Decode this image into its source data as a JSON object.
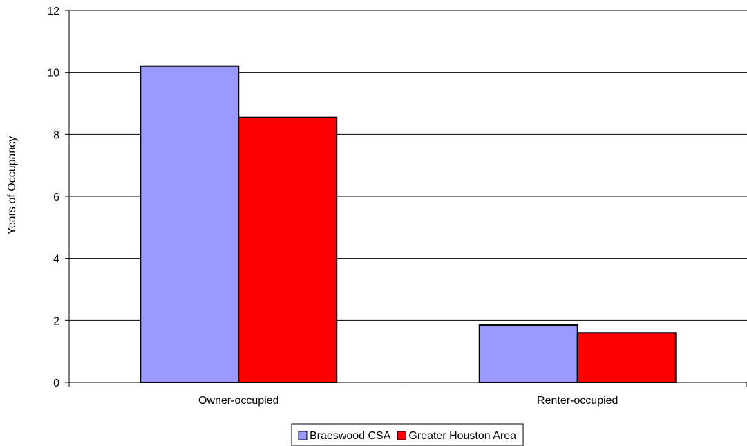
{
  "chart_data": {
    "type": "bar",
    "title": "",
    "xlabel": "",
    "ylabel": "Years of Occupancy",
    "categories": [
      "Owner-occupied",
      "Renter-occupied"
    ],
    "series": [
      {
        "name": "Braeswood CSA",
        "values": [
          10.2,
          1.85
        ],
        "color": "#9999ff"
      },
      {
        "name": "Greater Houston Area",
        "values": [
          8.55,
          1.6
        ],
        "color": "#ff0000"
      }
    ],
    "ylim": [
      0,
      12
    ],
    "yticks": [
      0,
      2,
      4,
      6,
      8,
      10,
      12
    ],
    "grid": true,
    "legend_position": "bottom"
  }
}
